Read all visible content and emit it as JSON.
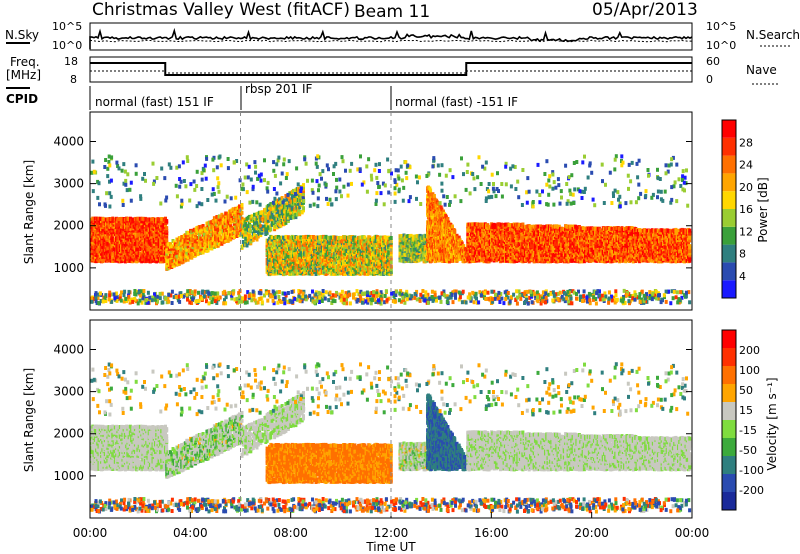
{
  "header": {
    "station": "Christmas Valley West (fitACF)",
    "beam": "Beam 11",
    "date": "05/Apr/2013"
  },
  "noise_panel": {
    "left_label": "N.Sky",
    "right_label": "N.Search",
    "left_ticks": [
      "10^5",
      "10^0"
    ],
    "right_ticks": [
      "10^5",
      "10^0"
    ]
  },
  "freq_panel": {
    "left_label_top": "Freq.",
    "left_label_bottom": "[MHz]",
    "right_label": "Nave",
    "left_ticks": [
      "18",
      "8"
    ],
    "right_ticks": [
      "60",
      "0"
    ]
  },
  "cpid_panel": {
    "label": "CPID",
    "segments": [
      {
        "start_hour": 0,
        "text": "normal (fast) 151 IF"
      },
      {
        "start_hour": 6,
        "text": "rbsp 201 IF"
      },
      {
        "start_hour": 12,
        "text": "normal (fast) -151 IF"
      }
    ]
  },
  "chart_data": [
    {
      "type": "heatmap",
      "quantity": "power",
      "ylabel": "Slant Range [km]",
      "ylim": [
        0,
        4700
      ],
      "yticks": [
        1000,
        2000,
        3000,
        4000
      ],
      "xlim": [
        0,
        24
      ],
      "colorbar": {
        "label": "Power [dB]",
        "ticks": [
          "28",
          "24",
          "20",
          "16",
          "12",
          "8",
          "4"
        ],
        "colors": [
          "#1a1aff",
          "#2a4bb0",
          "#2f7f7f",
          "#3aa03a",
          "#9acd32",
          "#ffd700",
          "#ffa500",
          "#ff7000",
          "#ff3000",
          "#ff0000"
        ]
      }
    },
    {
      "type": "heatmap",
      "quantity": "velocity",
      "ylabel": "Slant Range [km]",
      "ylim": [
        0,
        4700
      ],
      "yticks": [
        1000,
        2000,
        3000,
        4000
      ],
      "xlim": [
        0,
        24
      ],
      "xlabel": "Time UT",
      "xticks": [
        "00:00",
        "04:00",
        "08:00",
        "12:00",
        "16:00",
        "20:00",
        "00:00"
      ],
      "colorbar": {
        "label": "Velocity [m s⁻¹]",
        "ticks": [
          "200",
          "100",
          "50",
          "15",
          "-15",
          "-50",
          "-100",
          "-200"
        ],
        "colors": [
          "#1a2a9a",
          "#2a4bb0",
          "#2f7f7f",
          "#3caa3c",
          "#7fdc3f",
          "#c8c8c0",
          "#ffa500",
          "#ff7000",
          "#ff3000",
          "#ff0000"
        ]
      }
    }
  ]
}
